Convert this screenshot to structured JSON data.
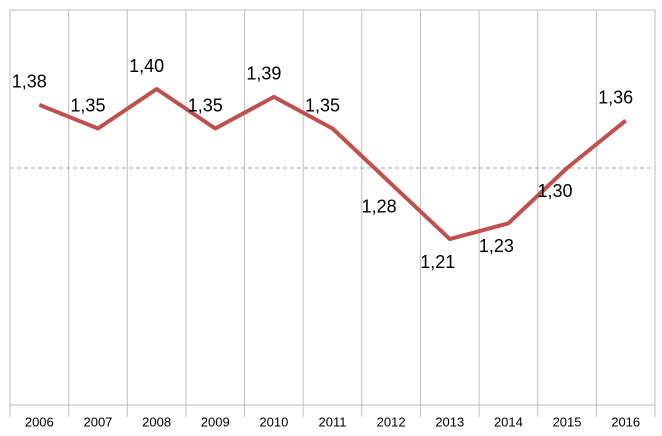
{
  "chart_data": {
    "type": "line",
    "categories": [
      "2006",
      "2007",
      "2008",
      "2009",
      "2010",
      "2011",
      "2012",
      "2013",
      "2014",
      "2015",
      "2016"
    ],
    "series": [
      {
        "color": "#c0504d",
        "values": [
          1.38,
          1.35,
          1.4,
          1.35,
          1.39,
          1.35,
          1.28,
          1.21,
          1.23,
          1.3,
          1.36
        ],
        "value_labels": [
          "1,38",
          "1,35",
          "1,40",
          "1,35",
          "1,39",
          "1,35",
          "1,28",
          "1,21",
          "1,23",
          "1,30",
          "1,36"
        ]
      }
    ],
    "ylim": [
      1.0,
      1.5
    ],
    "gridlines": [
      1.3
    ]
  }
}
